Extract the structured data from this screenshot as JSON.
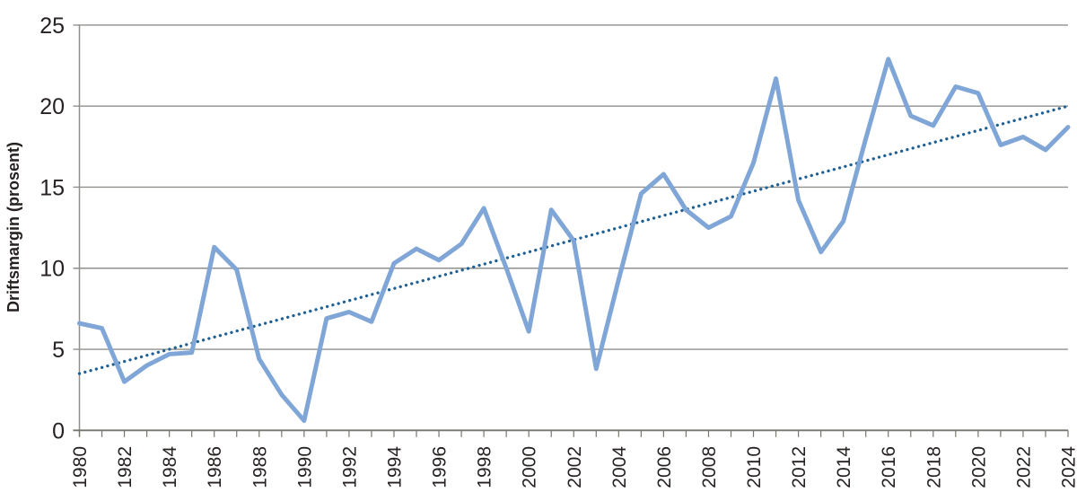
{
  "colors": {
    "series_line": "#7FA6D7",
    "trend_line": "#1E6094",
    "grid": "#8F8F8C",
    "axis": "#77756F",
    "text": "#262221",
    "background": "#FFFFFF"
  },
  "chart_data": {
    "type": "line",
    "ylabel": "Driftsmargin (prosent)",
    "xlabel": "",
    "ylim": [
      0,
      25
    ],
    "yticks": [
      0,
      5,
      10,
      15,
      20,
      25
    ],
    "grid": "horizontal",
    "legend": "none",
    "x": [
      1980,
      1981,
      1982,
      1983,
      1984,
      1985,
      1986,
      1987,
      1988,
      1989,
      1990,
      1991,
      1992,
      1993,
      1994,
      1995,
      1996,
      1997,
      1998,
      1999,
      2000,
      2001,
      2002,
      2003,
      2004,
      2005,
      2006,
      2007,
      2008,
      2009,
      2010,
      2011,
      2012,
      2013,
      2014,
      2015,
      2016,
      2017,
      2018,
      2019,
      2020,
      2021,
      2022,
      2023,
      2024
    ],
    "xticks": [
      1980,
      1982,
      1984,
      1986,
      1988,
      1990,
      1992,
      1994,
      1996,
      1998,
      2000,
      2002,
      2004,
      2006,
      2008,
      2010,
      2012,
      2014,
      2016,
      2018,
      2020,
      2022,
      2024
    ],
    "series": [
      {
        "name": "Driftsmargin",
        "style": "solid",
        "values": [
          6.6,
          6.3,
          3.0,
          4.0,
          4.7,
          4.8,
          11.3,
          9.9,
          4.4,
          2.2,
          0.6,
          6.9,
          7.3,
          6.7,
          10.3,
          11.2,
          10.5,
          11.5,
          13.7,
          10.0,
          6.1,
          13.6,
          11.7,
          3.8,
          9.3,
          14.6,
          15.8,
          13.6,
          12.5,
          13.2,
          16.5,
          21.7,
          14.2,
          11.0,
          12.9,
          18.0,
          22.9,
          19.4,
          18.8,
          21.2,
          20.8,
          17.6,
          18.1,
          17.3,
          18.7
        ]
      }
    ],
    "trend": {
      "name": "Lineær trend",
      "style": "dotted",
      "start_year": 1980,
      "start_value": 3.5,
      "end_year": 2024,
      "end_value": 20.0
    }
  }
}
